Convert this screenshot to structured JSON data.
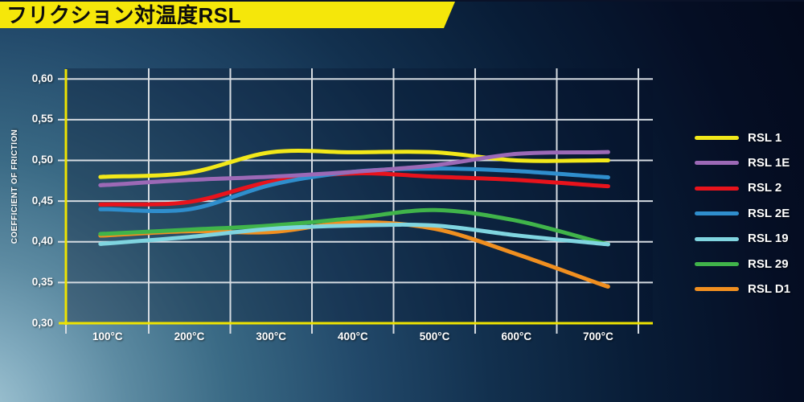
{
  "header": {
    "title": "フリクション対温度RSL"
  },
  "colors": {
    "band_yellow": "#f5e70a",
    "title_text": "#0d0d0d",
    "axis_yellow": "#eee301",
    "grid_line": "#d5dbe1",
    "tick_text": "#ffffff",
    "bg_dark": "#060e24",
    "bg_light": "#a8cbd8"
  },
  "chart_data": {
    "type": "line",
    "title": "フリクション対温度RSL",
    "xlabel": "",
    "ylabel": "COEFFICIENT OF FRICTION",
    "categories": [
      "100°C",
      "200°C",
      "300°C",
      "400°C",
      "500°C",
      "600°C",
      "700°C"
    ],
    "y_ticks": {
      "labels": [
        "0,60",
        "0,55",
        "0,50",
        "0,45",
        "0,40",
        "0,35",
        "0,30"
      ],
      "values": [
        0.6,
        0.55,
        0.5,
        0.45,
        0.4,
        0.35,
        0.3
      ]
    },
    "ylim": [
      0.3,
      0.6
    ],
    "grid": true,
    "legend_position": "right",
    "series": [
      {
        "name": "RSL 1",
        "color": "#f2e81a",
        "values": [
          0.48,
          0.485,
          0.51,
          0.51,
          0.51,
          0.5,
          0.5
        ]
      },
      {
        "name": "RSL 1E",
        "color": "#9c69b6",
        "values": [
          0.47,
          0.476,
          0.48,
          0.486,
          0.494,
          0.508,
          0.51
        ]
      },
      {
        "name": "RSL 2",
        "color": "#e8131c",
        "values": [
          0.446,
          0.449,
          0.474,
          0.484,
          0.48,
          0.476,
          0.469
        ]
      },
      {
        "name": "RSL 2E",
        "color": "#2f8ecd",
        "values": [
          0.44,
          0.44,
          0.47,
          0.486,
          0.49,
          0.487,
          0.48
        ]
      },
      {
        "name": "RSL 19",
        "color": "#80d5e0",
        "values": [
          0.398,
          0.406,
          0.416,
          0.42,
          0.42,
          0.408,
          0.398
        ]
      },
      {
        "name": "RSL 29",
        "color": "#40b44a",
        "values": [
          0.41,
          0.415,
          0.42,
          0.429,
          0.439,
          0.426,
          0.4
        ]
      },
      {
        "name": "RSL D1",
        "color": "#f08f20",
        "values": [
          0.408,
          0.413,
          0.412,
          0.424,
          0.416,
          0.385,
          0.349
        ]
      }
    ],
    "draw_order": [
      "RSL 1",
      "RSL 2",
      "RSL 2E",
      "RSL 1E",
      "RSL D1",
      "RSL 29",
      "RSL 19"
    ]
  }
}
